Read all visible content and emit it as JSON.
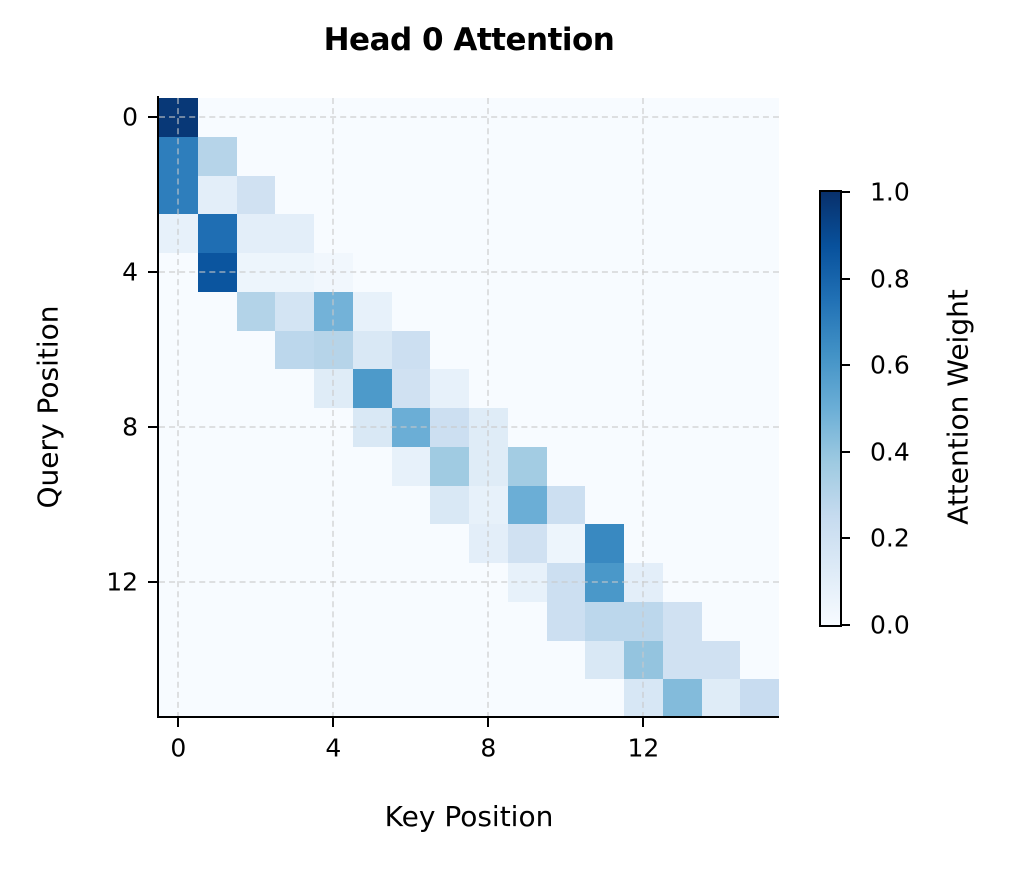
{
  "chart_data": {
    "type": "heatmap",
    "title": "Head 0 Attention",
    "xlabel": "Key Position",
    "ylabel": "Query Position",
    "colormap": "Blues",
    "colorbar": {
      "label": "Attention Weight",
      "range": [
        0.0,
        1.0
      ],
      "ticks": [
        "0.0",
        "0.2",
        "0.4",
        "0.6",
        "0.8",
        "1.0"
      ]
    },
    "x_ticks": [
      "0",
      "4",
      "8",
      "12"
    ],
    "y_ticks": [
      "0",
      "4",
      "8",
      "12"
    ],
    "x_range": [
      0,
      15
    ],
    "y_range": [
      0,
      15
    ],
    "grid": true,
    "rows": 16,
    "cols": 16,
    "matrix": [
      [
        0.97,
        0,
        0,
        0,
        0,
        0,
        0,
        0,
        0,
        0,
        0,
        0,
        0,
        0,
        0,
        0
      ],
      [
        0.7,
        0.3,
        0,
        0,
        0,
        0,
        0,
        0,
        0,
        0,
        0,
        0,
        0,
        0,
        0,
        0
      ],
      [
        0.7,
        0.1,
        0.2,
        0,
        0,
        0,
        0,
        0,
        0,
        0,
        0,
        0,
        0,
        0,
        0,
        0
      ],
      [
        0.08,
        0.76,
        0.1,
        0.1,
        0,
        0,
        0,
        0,
        0,
        0,
        0,
        0,
        0,
        0,
        0,
        0
      ],
      [
        0,
        0.86,
        0.05,
        0.05,
        0.03,
        0,
        0,
        0,
        0,
        0,
        0,
        0,
        0,
        0,
        0,
        0
      ],
      [
        0,
        0,
        0.31,
        0.18,
        0.48,
        0.08,
        0,
        0,
        0,
        0,
        0,
        0,
        0,
        0,
        0,
        0
      ],
      [
        0,
        0,
        0,
        0.28,
        0.3,
        0.15,
        0.22,
        0,
        0,
        0,
        0,
        0,
        0,
        0,
        0,
        0
      ],
      [
        0,
        0,
        0,
        0,
        0.12,
        0.59,
        0.2,
        0.08,
        0,
        0,
        0,
        0,
        0,
        0,
        0,
        0
      ],
      [
        0,
        0,
        0,
        0,
        0,
        0.15,
        0.5,
        0.22,
        0.12,
        0,
        0,
        0,
        0,
        0,
        0,
        0
      ],
      [
        0,
        0,
        0,
        0,
        0,
        0,
        0.08,
        0.37,
        0.12,
        0.36,
        0,
        0,
        0,
        0,
        0,
        0
      ],
      [
        0,
        0,
        0,
        0,
        0,
        0,
        0,
        0.15,
        0.08,
        0.5,
        0.22,
        0,
        0,
        0,
        0,
        0
      ],
      [
        0,
        0,
        0,
        0,
        0,
        0,
        0,
        0,
        0.1,
        0.2,
        0.05,
        0.66,
        0,
        0,
        0,
        0
      ],
      [
        0,
        0,
        0,
        0,
        0,
        0,
        0,
        0,
        0,
        0.08,
        0.22,
        0.6,
        0.1,
        0,
        0,
        0
      ],
      [
        0,
        0,
        0,
        0,
        0,
        0,
        0,
        0,
        0,
        0,
        0.22,
        0.28,
        0.28,
        0.2,
        0,
        0
      ],
      [
        0,
        0,
        0,
        0,
        0,
        0,
        0,
        0,
        0,
        0,
        0,
        0.15,
        0.4,
        0.2,
        0.2,
        0
      ],
      [
        0,
        0,
        0,
        0,
        0,
        0,
        0,
        0,
        0,
        0,
        0,
        0,
        0.16,
        0.44,
        0.12,
        0.24
      ]
    ]
  }
}
